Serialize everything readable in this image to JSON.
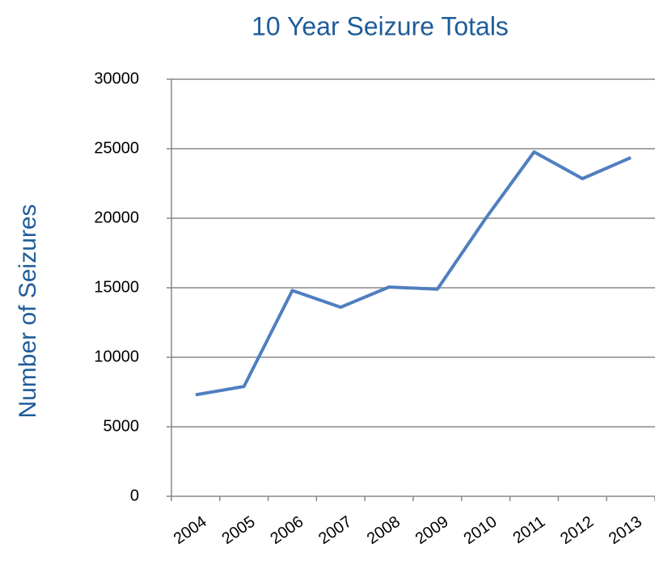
{
  "chart_data": {
    "type": "line",
    "title": "10 Year Seizure Totals",
    "y_label": "Number of Seizures",
    "categories": [
      "2004",
      "2005",
      "2006",
      "2007",
      "2008",
      "2009",
      "2010",
      "2011",
      "2012",
      "2013"
    ],
    "series": [
      {
        "name": "Seizures",
        "color": "#4f7fbf",
        "values": [
          7300,
          7900,
          14800,
          13600,
          15050,
          14900,
          20000,
          24770,
          22850,
          24360
        ]
      }
    ],
    "ylim": [
      0,
      30000
    ],
    "yticks": [
      0,
      5000,
      10000,
      15000,
      20000,
      25000,
      30000
    ],
    "grid": true
  }
}
